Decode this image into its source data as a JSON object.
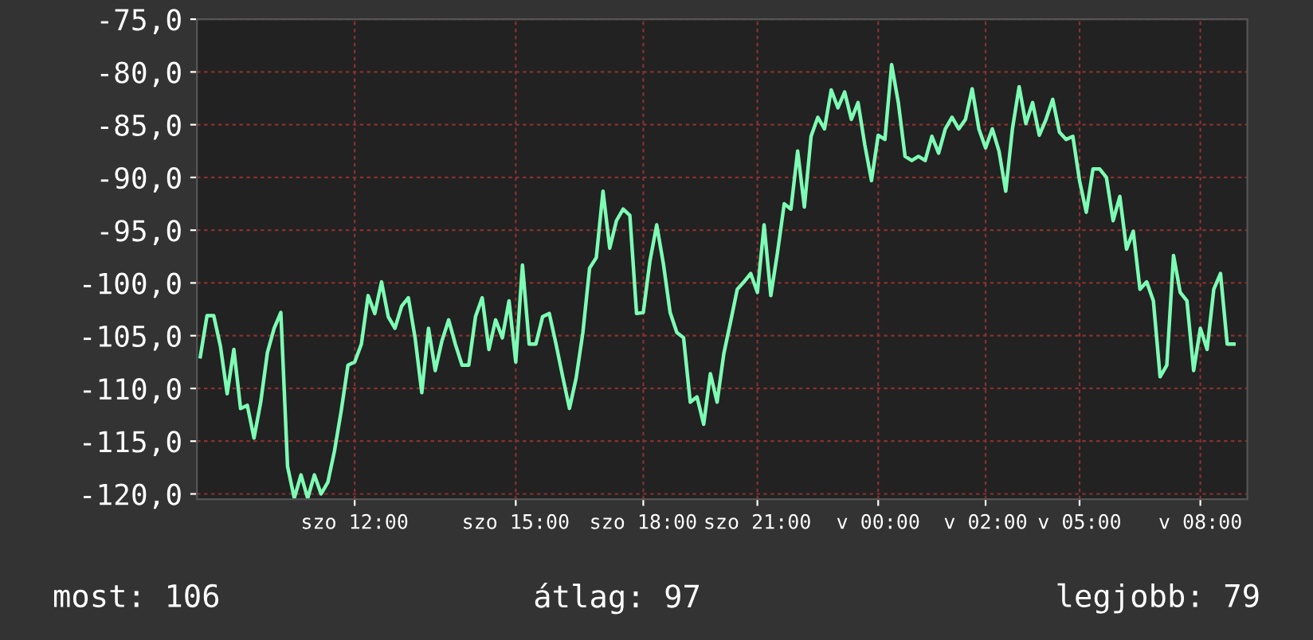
{
  "chart_data": {
    "type": "line",
    "categories": [
      null,
      null,
      null,
      null,
      null,
      null,
      null,
      null,
      null,
      null,
      null,
      null,
      null,
      null,
      null,
      null,
      null,
      null,
      null,
      null,
      null,
      null,
      null,
      "szo 12:00",
      null,
      null,
      null,
      null,
      null,
      null,
      null,
      null,
      null,
      null,
      null,
      null,
      null,
      null,
      null,
      null,
      null,
      null,
      null,
      null,
      null,
      null,
      null,
      "szo 15:00",
      null,
      null,
      null,
      null,
      null,
      null,
      null,
      null,
      null,
      null,
      null,
      null,
      null,
      null,
      null,
      null,
      null,
      null,
      "szo 18:00",
      null,
      null,
      null,
      null,
      null,
      null,
      null,
      null,
      null,
      null,
      null,
      null,
      null,
      null,
      null,
      null,
      "szo 21:00",
      null,
      null,
      null,
      null,
      null,
      null,
      null,
      null,
      null,
      null,
      null,
      null,
      null,
      null,
      null,
      null,
      null,
      "v 00:00",
      null,
      null,
      null,
      null,
      null,
      null,
      null,
      null,
      null,
      null,
      null,
      null,
      null,
      null,
      null,
      "v 02:00",
      null,
      null,
      null,
      null,
      null,
      null,
      null,
      null,
      null,
      null,
      null,
      null,
      null,
      "v 05:00",
      null,
      null,
      null,
      null,
      null,
      null,
      null,
      null,
      null,
      null,
      null,
      null,
      null,
      null,
      null,
      null,
      null,
      "v 08:00",
      null,
      null,
      null,
      null,
      null
    ],
    "series": [
      {
        "color": "#7dfcb4",
        "values": [
          -107.0,
          -103.1,
          -103.1,
          -106.0,
          -110.5,
          -106.3,
          -111.9,
          -111.6,
          -114.7,
          -111.3,
          -106.6,
          -104.3,
          -102.8,
          -117.4,
          -120.4,
          -118.2,
          -120.4,
          -118.2,
          -120.0,
          -118.9,
          -115.9,
          -112.1,
          -107.8,
          -107.5,
          -105.8,
          -101.2,
          -102.9,
          -99.9,
          -103.2,
          -104.3,
          -102.2,
          -101.4,
          -105.2,
          -110.4,
          -104.3,
          -108.3,
          -105.5,
          -103.5,
          -105.8,
          -107.8,
          -107.8,
          -103.2,
          -101.4,
          -106.3,
          -103.5,
          -105.2,
          -101.7,
          -107.5,
          -98.3,
          -105.8,
          -105.8,
          -103.2,
          -102.9,
          -105.8,
          -108.9,
          -111.9,
          -109.0,
          -104.7,
          -98.6,
          -97.6,
          -91.3,
          -96.7,
          -94.1,
          -93.0,
          -93.6,
          -102.9,
          -102.8,
          -97.9,
          -94.5,
          -98.2,
          -102.8,
          -104.7,
          -105.2,
          -111.3,
          -110.8,
          -113.4,
          -108.6,
          -111.3,
          -106.7,
          -103.7,
          -100.6,
          -99.9,
          -99.1,
          -100.9,
          -94.5,
          -101.2,
          -97.1,
          -92.5,
          -93.0,
          -87.5,
          -92.8,
          -86.1,
          -84.3,
          -85.4,
          -81.7,
          -83.4,
          -81.9,
          -84.5,
          -82.9,
          -86.9,
          -90.3,
          -86.0,
          -86.4,
          -79.3,
          -82.9,
          -88.0,
          -88.4,
          -88.0,
          -88.4,
          -86.1,
          -87.7,
          -85.4,
          -84.3,
          -85.4,
          -84.5,
          -81.6,
          -85.4,
          -87.2,
          -85.4,
          -87.5,
          -91.3,
          -85.4,
          -81.4,
          -84.9,
          -82.9,
          -86.0,
          -84.5,
          -82.6,
          -85.7,
          -86.4,
          -86.1,
          -90.3,
          -93.3,
          -89.2,
          -89.2,
          -90.0,
          -94.1,
          -91.8,
          -96.8,
          -95.1,
          -100.6,
          -99.9,
          -101.7,
          -108.9,
          -107.8,
          -97.4,
          -100.9,
          -101.7,
          -108.3,
          -104.3,
          -106.3,
          -100.6,
          -99.1,
          -105.8,
          -105.8
        ]
      }
    ],
    "ylim": [
      -120.5,
      -75
    ],
    "yticks": [
      {
        "value": -120,
        "label": "-120,0"
      },
      {
        "value": -115,
        "label": "-115,0"
      },
      {
        "value": -110,
        "label": "-110,0"
      },
      {
        "value": -105,
        "label": "-105,0"
      },
      {
        "value": -100,
        "label": "-100,0"
      },
      {
        "value": -95,
        "label": "-95,0"
      },
      {
        "value": -90,
        "label": "-90,0"
      },
      {
        "value": -85,
        "label": "-85,0"
      },
      {
        "value": -80,
        "label": "-80,0"
      },
      {
        "value": -75,
        "label": "-75,0"
      }
    ],
    "grid": true,
    "line_style": "solid",
    "annotations": [
      "most: 106",
      "átlag: 97",
      "legjobb: 79"
    ]
  }
}
